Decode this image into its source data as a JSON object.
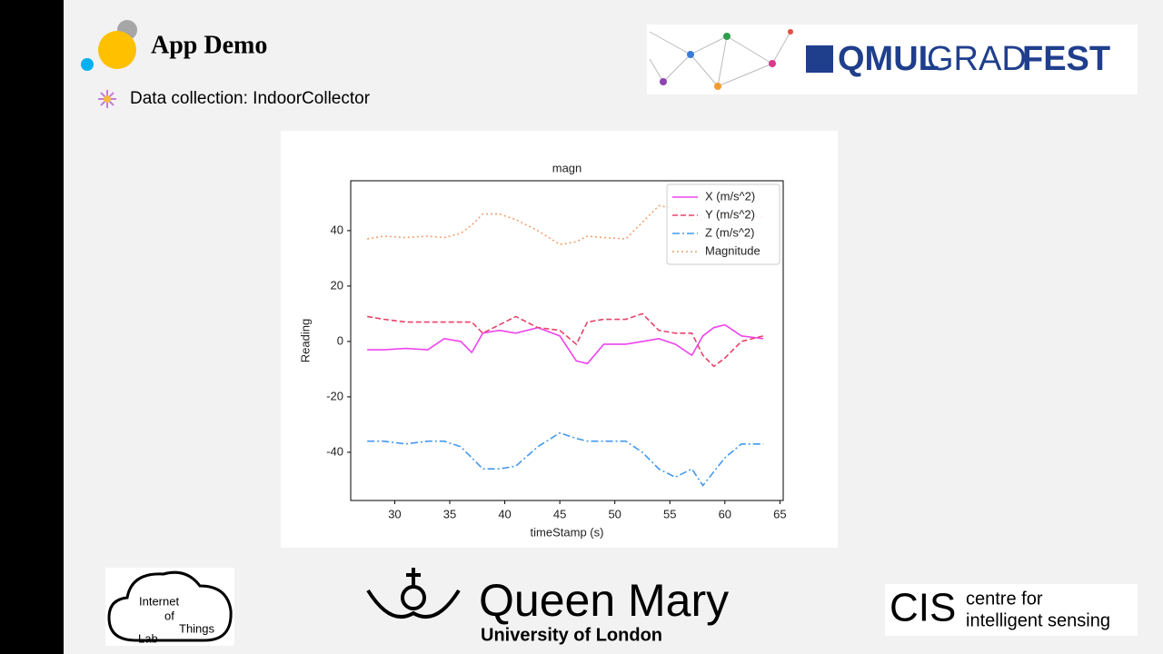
{
  "slide": {
    "title": "App Demo",
    "bullet": "Data collection: IndoorCollector",
    "gradfest": [
      "QMUL",
      "GRAD",
      "FEST"
    ],
    "iot": [
      "Internet",
      "of",
      "Things",
      "Lab"
    ],
    "qm": [
      "Queen Mary",
      "University of London"
    ],
    "cis": [
      "CIS",
      "centre for",
      "intelligent sensing"
    ]
  },
  "chart_data": {
    "type": "line",
    "title": "magn",
    "x_label": "timeStamp (s)",
    "y_label": "Reading",
    "x": [
      27.5,
      29,
      31,
      33,
      34.5,
      36,
      37,
      38,
      39.5,
      41,
      43,
      45,
      46.5,
      47.5,
      49,
      51,
      52.5,
      54,
      55.5,
      57,
      58,
      59,
      60,
      61.5,
      63.5
    ],
    "series": [
      {
        "name": "X (m/s^2)",
        "color": "#ee44ee",
        "linestyle": "solid",
        "values": [
          -3,
          -3,
          -2.5,
          -3,
          1,
          0,
          -4,
          3,
          4,
          3,
          5,
          2,
          -7,
          -8,
          -1,
          -1,
          0,
          1,
          -1,
          -5,
          2,
          5,
          6,
          2,
          1
        ]
      },
      {
        "name": "Y (m/s^2)",
        "color": "#e8446a",
        "linestyle": "dashed",
        "values": [
          9,
          8,
          7,
          7,
          7,
          7,
          7,
          3,
          6,
          9,
          5,
          4,
          -1,
          7,
          8,
          8,
          10,
          4,
          3,
          3,
          -5,
          -9,
          -6,
          0,
          2
        ]
      },
      {
        "name": "Z (m/s^2)",
        "color": "#4499ee",
        "linestyle": "dashdot",
        "values": [
          -36,
          -36,
          -37,
          -36,
          -36,
          -38,
          -42,
          -46,
          -46,
          -45,
          -38,
          -33,
          -35,
          -36,
          -36,
          -36,
          -40,
          -46,
          -49,
          -46,
          -52,
          -47,
          -42,
          -37,
          -37
        ]
      },
      {
        "name": "Magnitude",
        "color": "#f0a070",
        "linestyle": "dotted",
        "values": [
          37,
          38,
          37.5,
          38,
          37.5,
          39,
          42,
          46,
          46,
          44,
          40,
          35,
          36,
          38,
          37.5,
          37,
          43,
          49,
          48,
          44,
          44,
          47,
          46,
          45,
          45
        ]
      }
    ],
    "xlim": [
      26,
      65.3
    ],
    "ylim": [
      -57.4,
      58
    ],
    "xticks": [
      30,
      35,
      40,
      45,
      50,
      55,
      60,
      65
    ],
    "yticks": [
      -40,
      -20,
      0,
      20,
      40
    ],
    "legend": "upper right",
    "grid": false
  }
}
